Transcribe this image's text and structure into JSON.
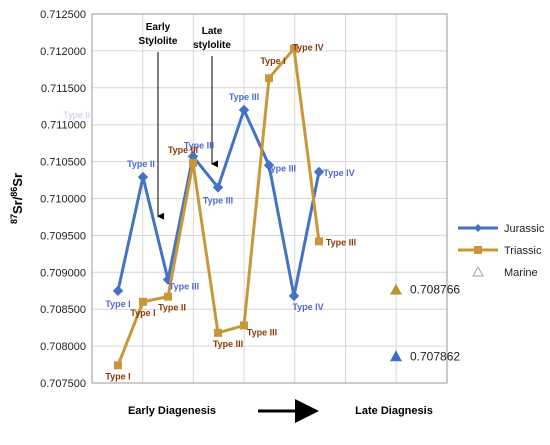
{
  "chart_data": {
    "type": "line",
    "ylabel": "87Sr/86Sr",
    "ylim": [
      0.7075,
      0.7125
    ],
    "ytick_step": 0.0005,
    "xlim": [
      0,
      9
    ],
    "grid": true,
    "legend_position": "right",
    "series": [
      {
        "name": "Jurassic",
        "color": "#4472c4",
        "marker": "diamond",
        "x": [
          1,
          2,
          3,
          4,
          5,
          6,
          7,
          8,
          9
        ],
        "values": [
          0.70875,
          0.71029,
          0.7089,
          0.71057,
          0.71015,
          0.7112,
          0.71045,
          0.70868,
          0.71036
        ],
        "labels": [
          "Type I",
          "Type II",
          "Type III",
          "Type III",
          "Type III",
          "Type III",
          "Type III",
          "Type IV",
          "Type IV"
        ]
      },
      {
        "name": "Triassic",
        "color": "#c9973a",
        "marker": "square",
        "x": [
          1,
          2,
          3,
          4,
          5,
          6,
          7,
          8,
          9
        ],
        "values": [
          0.70774,
          0.7086,
          0.70867,
          0.71048,
          0.70818,
          0.70828,
          0.71163,
          0.71203,
          0.70942
        ],
        "labels": [
          "Type I",
          "Type I",
          "Type II",
          "Type III",
          "Type III",
          "Type III",
          "Type I",
          "Type IV",
          "Type III"
        ]
      },
      {
        "name": "Marine",
        "color": "#9aa0aa",
        "marker": "triangle-open",
        "x": [],
        "values": [],
        "labels": []
      }
    ],
    "marine_points": [
      {
        "value": 0.708766,
        "label": "0.708766",
        "color": "#b8962e"
      },
      {
        "value": 0.707862,
        "label": "0.707862",
        "color": "#3a6fc8"
      }
    ],
    "annotations": [
      {
        "text": [
          "Early",
          "Stylolite"
        ],
        "x": 2.4,
        "arrow_to_y": 0.70976
      },
      {
        "text": [
          "Late",
          "stylolite"
        ],
        "x": 4.2,
        "arrow_to_y": 0.71047
      }
    ],
    "bottom_labels": {
      "left": "Early Diagenesis",
      "right": "Late Diagnesis"
    },
    "extra_labels": [
      {
        "text": "Type III"
      }
    ]
  }
}
